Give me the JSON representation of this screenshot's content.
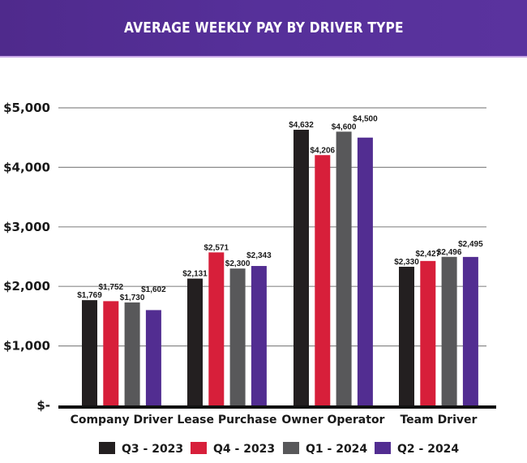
{
  "header": {
    "title": "AVERAGE WEEKLY PAY BY DRIVER TYPE"
  },
  "chart_data": {
    "type": "bar",
    "title": "AVERAGE WEEKLY PAY BY DRIVER TYPE",
    "xlabel": "",
    "ylabel": "",
    "ylim": [
      0,
      5000
    ],
    "grid": true,
    "legend_position": "bottom",
    "yticks": [
      0,
      1000,
      2000,
      3000,
      4000,
      5000
    ],
    "ytick_labels": [
      "$-",
      "$1,000",
      "$2,000",
      "$3,000",
      "$4,000",
      "$5,000"
    ],
    "categories": [
      "Company Driver",
      "Lease Purchase",
      "Owner Operator",
      "Team Driver"
    ],
    "series": [
      {
        "name": "Q3 - 2023",
        "color": "#231f20",
        "values": [
          1769,
          2131,
          4632,
          2330
        ],
        "labels": [
          "$1,769",
          "$2,131",
          "$4,632",
          "$2,330"
        ]
      },
      {
        "name": "Q4 - 2023",
        "color": "#d71f3a",
        "values": [
          1752,
          2571,
          4206,
          2427
        ],
        "labels": [
          "$1,752",
          "$2,571",
          "$4,206",
          "$2,427"
        ]
      },
      {
        "name": "Q1 - 2024",
        "color": "#58585a",
        "values": [
          1730,
          2300,
          4600,
          2496
        ],
        "labels": [
          "$1,730",
          "$2,300",
          "$4,600",
          "$2,496"
        ]
      },
      {
        "name": "Q2 - 2024",
        "color": "#522d91",
        "values": [
          1602,
          2343,
          4500,
          2495
        ],
        "labels": [
          "$1,602",
          "$2,343",
          "$4,500",
          "$2,495"
        ]
      }
    ]
  }
}
